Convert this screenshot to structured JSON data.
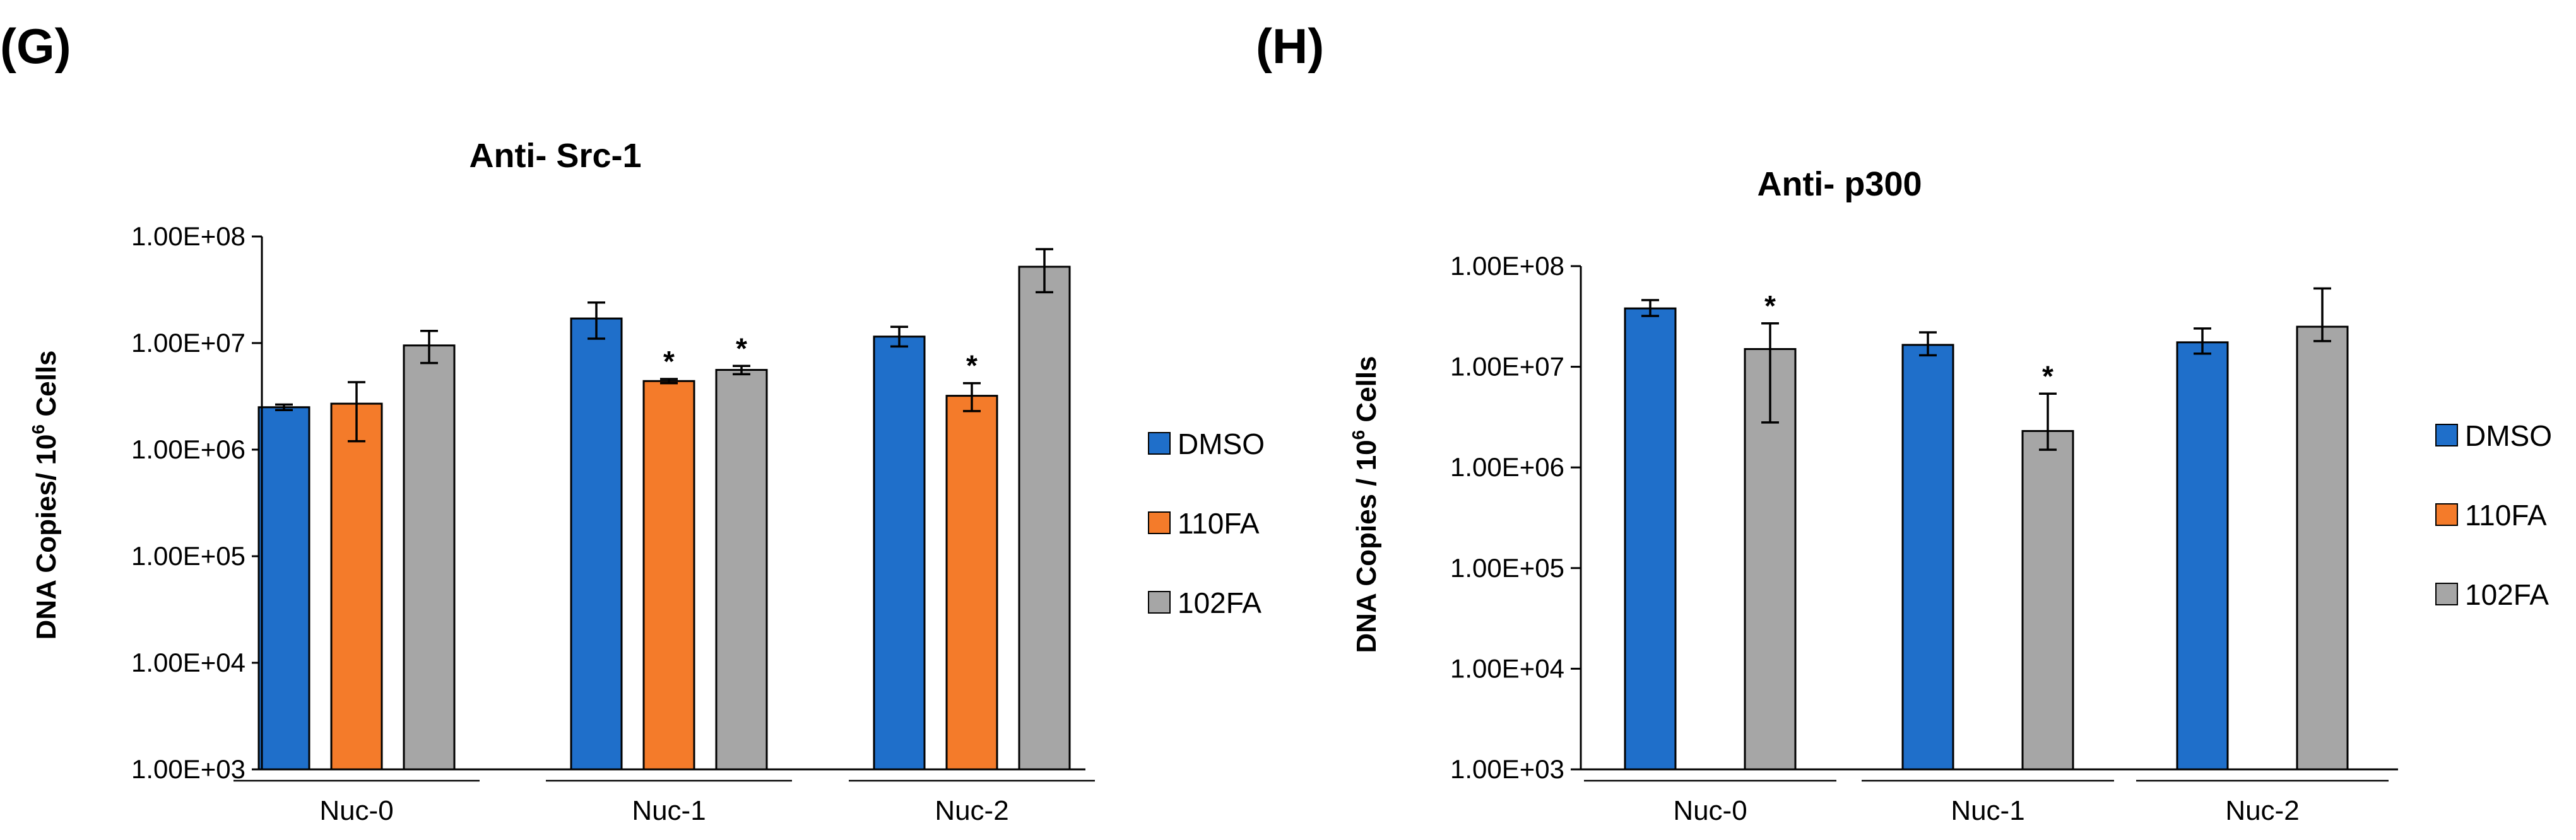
{
  "chart_data": [
    {
      "panel": "(G)",
      "type": "bar",
      "title": "Anti- Src-1",
      "ylabel_main": "DNA Copies/ 10",
      "ylabel_sup": "6",
      "ylabel_tail": " Cells",
      "yscale": "log",
      "ylim": [
        1000,
        100000000
      ],
      "ytick_values": [
        1000,
        10000,
        100000,
        1000000,
        10000000,
        100000000
      ],
      "ytick_labels": [
        "1.00E+03",
        "1.00E+04",
        "1.00E+05",
        "1.00E+06",
        "1.00E+07",
        "1.00E+08"
      ],
      "categories": [
        "Nuc-0",
        "Nuc-1",
        "Nuc-2"
      ],
      "series": [
        {
          "name": "DMSO",
          "color": "#1f6fca",
          "values": [
            2500000,
            17000000,
            11500000
          ],
          "err_low": [
            2350000,
            11000000,
            9300000
          ],
          "err_high": [
            2650000,
            24000000,
            14200000
          ],
          "sig": [
            "",
            "",
            ""
          ]
        },
        {
          "name": "110FA",
          "color": "#f47b2a",
          "values": [
            2700000,
            4400000,
            3200000
          ],
          "err_low": [
            1200000,
            4200000,
            2300000
          ],
          "err_high": [
            4300000,
            4600000,
            4200000
          ],
          "sig": [
            "",
            "*",
            "*"
          ]
        },
        {
          "name": "102FA",
          "color": "#a6a6a6",
          "values": [
            9500000,
            5600000,
            52000000
          ],
          "err_low": [
            6500000,
            5100000,
            30000000
          ],
          "err_high": [
            13000000,
            6100000,
            76000000
          ],
          "sig": [
            "",
            "*",
            ""
          ]
        }
      ],
      "legend": [
        {
          "name": "DMSO",
          "color": "#1f6fca"
        },
        {
          "name": "110FA",
          "color": "#f47b2a"
        },
        {
          "name": "102FA",
          "color": "#a6a6a6"
        }
      ]
    },
    {
      "panel": "(H)",
      "type": "bar",
      "title": "Anti- p300",
      "ylabel_main": "DNA Copies / 10",
      "ylabel_sup": "6",
      "ylabel_tail": " Cells",
      "yscale": "log",
      "ylim": [
        1000,
        100000000
      ],
      "ytick_values": [
        1000,
        10000,
        100000,
        1000000,
        10000000,
        100000000
      ],
      "ytick_labels": [
        "1.00E+03",
        "1.00E+04",
        "1.00E+05",
        "1.00E+06",
        "1.00E+07",
        "1.00E+08"
      ],
      "categories": [
        "Nuc-0",
        "Nuc-1",
        "Nuc-2"
      ],
      "series": [
        {
          "name": "DMSO",
          "color": "#1f6fca",
          "values": [
            38000000,
            16500000,
            17500000
          ],
          "err_low": [
            32000000,
            13000000,
            13500000
          ],
          "err_high": [
            46000000,
            22000000,
            24000000
          ],
          "sig": [
            "",
            "",
            ""
          ]
        },
        {
          "name": "102FA",
          "color": "#a6a6a6",
          "values": [
            15000000,
            2300000,
            25000000
          ],
          "err_low": [
            2800000,
            1500000,
            18000000
          ],
          "err_high": [
            27000000,
            5400000,
            60000000
          ],
          "sig": [
            "*",
            "*",
            ""
          ]
        }
      ],
      "legend": [
        {
          "name": "DMSO",
          "color": "#1f6fca"
        },
        {
          "name": "110FA",
          "color": "#f47b2a"
        },
        {
          "name": "102FA",
          "color": "#a6a6a6"
        }
      ]
    }
  ]
}
